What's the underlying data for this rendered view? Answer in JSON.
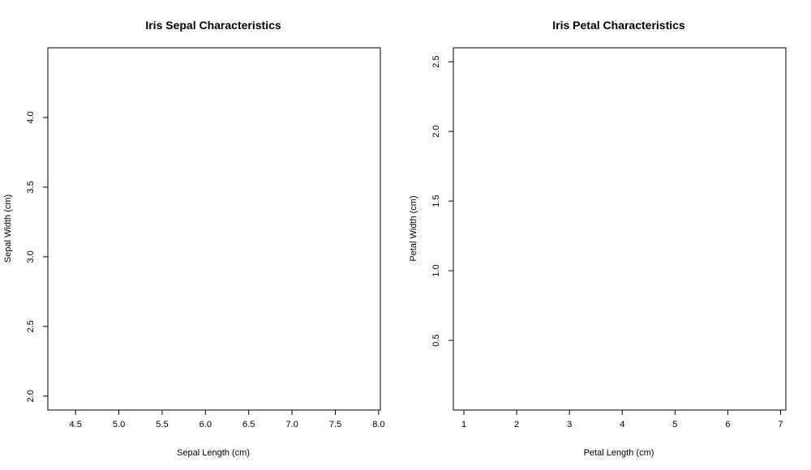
{
  "chart_data": [
    {
      "type": "scatter",
      "title": "Iris Sepal Characteristics",
      "xlabel": "Sepal Length (cm)",
      "ylabel": "Sepal Width (cm)",
      "xlim": [
        4.18,
        8.02
      ],
      "ylim": [
        1.9,
        4.5
      ],
      "x_ticks": [
        "4.5",
        "5.0",
        "5.5",
        "6.0",
        "6.5",
        "7.0",
        "7.5",
        "8.0"
      ],
      "y_ticks": [
        "2.0",
        "2.5",
        "3.0",
        "3.5",
        "4.0"
      ],
      "series": [],
      "grid": false
    },
    {
      "type": "scatter",
      "title": "Iris Petal Characteristics",
      "xlabel": "Petal Length (cm)",
      "ylabel": "Petal Width (cm)",
      "xlim": [
        0.8,
        7.1
      ],
      "ylim": [
        0.0,
        2.6
      ],
      "x_ticks": [
        "1",
        "2",
        "3",
        "4",
        "5",
        "6",
        "7"
      ],
      "y_ticks": [
        "0.5",
        "1.0",
        "1.5",
        "2.0",
        "2.5"
      ],
      "series": [],
      "grid": false
    }
  ]
}
